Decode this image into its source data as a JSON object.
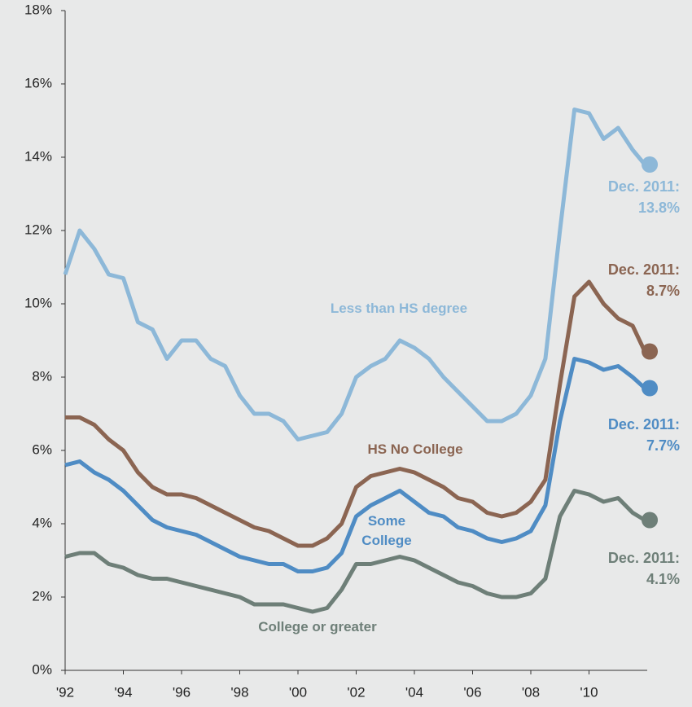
{
  "chart_data": {
    "type": "line",
    "x": [
      1992,
      1992.5,
      1993,
      1993.5,
      1994,
      1994.5,
      1995,
      1995.5,
      1996,
      1996.5,
      1997,
      1997.5,
      1998,
      1998.5,
      1999,
      1999.5,
      2000,
      2000.5,
      2001,
      2001.5,
      2002,
      2002.5,
      2003,
      2003.5,
      2004,
      2004.5,
      2005,
      2005.5,
      2006,
      2006.5,
      2007,
      2007.5,
      2008,
      2008.5,
      2009,
      2009.5,
      2010,
      2010.5,
      2011,
      2011.5,
      2011.917
    ],
    "series": [
      {
        "name": "Less than HS degree",
        "color": "#8db8d8",
        "end_note": "Dec. 2011:",
        "end_label": "13.8%",
        "values": [
          10.8,
          12.0,
          11.5,
          10.8,
          10.7,
          9.5,
          9.3,
          8.5,
          9.0,
          9.0,
          8.5,
          8.3,
          7.5,
          7.0,
          7.0,
          6.8,
          6.3,
          6.4,
          6.5,
          7.0,
          8.0,
          8.3,
          8.5,
          9.0,
          8.8,
          8.5,
          8.0,
          7.6,
          7.2,
          6.8,
          6.8,
          7.0,
          7.5,
          8.5,
          12.0,
          15.3,
          15.2,
          14.5,
          14.8,
          14.2,
          13.8
        ]
      },
      {
        "name": "HS No College",
        "color": "#8b6552",
        "end_note": "Dec. 2011:",
        "end_label": "8.7%",
        "values": [
          6.9,
          6.9,
          6.7,
          6.3,
          6.0,
          5.4,
          5.0,
          4.8,
          4.8,
          4.7,
          4.5,
          4.3,
          4.1,
          3.9,
          3.8,
          3.6,
          3.4,
          3.4,
          3.6,
          4.0,
          5.0,
          5.3,
          5.4,
          5.5,
          5.4,
          5.2,
          5.0,
          4.7,
          4.6,
          4.3,
          4.2,
          4.3,
          4.6,
          5.2,
          7.8,
          10.2,
          10.6,
          10.0,
          9.6,
          9.4,
          8.7
        ]
      },
      {
        "name": "Some College",
        "color": "#4f8cc4",
        "end_note": "Dec. 2011:",
        "end_label": "7.7%",
        "values": [
          5.6,
          5.7,
          5.4,
          5.2,
          4.9,
          4.5,
          4.1,
          3.9,
          3.8,
          3.7,
          3.5,
          3.3,
          3.1,
          3.0,
          2.9,
          2.9,
          2.7,
          2.7,
          2.8,
          3.2,
          4.2,
          4.5,
          4.7,
          4.9,
          4.6,
          4.3,
          4.2,
          3.9,
          3.8,
          3.6,
          3.5,
          3.6,
          3.8,
          4.5,
          6.8,
          8.5,
          8.4,
          8.2,
          8.3,
          8.0,
          7.7
        ]
      },
      {
        "name": "College or greater",
        "color": "#6e7f78",
        "end_note": "Dec. 2011:",
        "end_label": "4.1%",
        "values": [
          3.1,
          3.2,
          3.2,
          2.9,
          2.8,
          2.6,
          2.5,
          2.5,
          2.4,
          2.3,
          2.2,
          2.1,
          2.0,
          1.8,
          1.8,
          1.8,
          1.7,
          1.6,
          1.7,
          2.2,
          2.9,
          2.9,
          3.0,
          3.1,
          3.0,
          2.8,
          2.6,
          2.4,
          2.3,
          2.1,
          2.0,
          2.0,
          2.1,
          2.5,
          4.2,
          4.9,
          4.8,
          4.6,
          4.7,
          4.3,
          4.1
        ]
      }
    ],
    "xlim": [
      1992,
      2012
    ],
    "xticks": [
      {
        "value": 1992,
        "label": "'92"
      },
      {
        "value": 1994,
        "label": "'94"
      },
      {
        "value": 1996,
        "label": "'96"
      },
      {
        "value": 1998,
        "label": "'98"
      },
      {
        "value": 2000,
        "label": "'00"
      },
      {
        "value": 2002,
        "label": "'02"
      },
      {
        "value": 2004,
        "label": "'04"
      },
      {
        "value": 2006,
        "label": "'06"
      },
      {
        "value": 2008,
        "label": "'08"
      },
      {
        "value": 2010,
        "label": "'10"
      }
    ],
    "ylim": [
      0,
      18
    ],
    "yticks": [
      {
        "value": 0,
        "label": "0%"
      },
      {
        "value": 2,
        "label": "2%"
      },
      {
        "value": 4,
        "label": "4%"
      },
      {
        "value": 6,
        "label": "6%"
      },
      {
        "value": 8,
        "label": "8%"
      },
      {
        "value": 10,
        "label": "10%"
      },
      {
        "value": 12,
        "label": "12%"
      },
      {
        "value": 14,
        "label": "14%"
      },
      {
        "value": 16,
        "label": "16%"
      },
      {
        "value": 18,
        "label": "18%"
      }
    ]
  }
}
